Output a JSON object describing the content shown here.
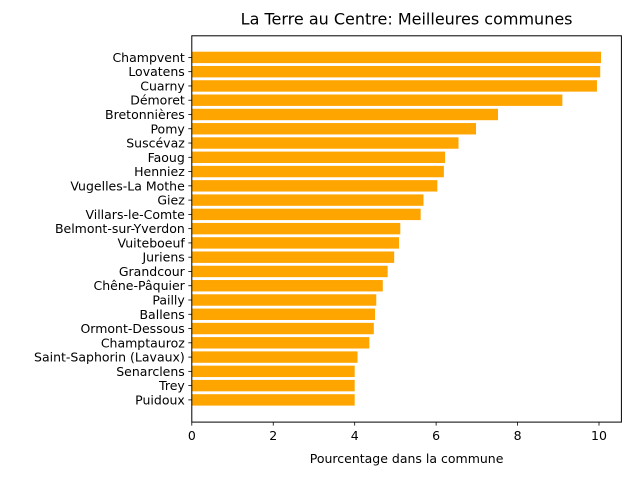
{
  "chart_data": {
    "type": "bar",
    "orientation": "horizontal",
    "title": "La Terre au Centre: Meilleures communes",
    "xlabel": "Pourcentage dans la commune",
    "ylabel": "",
    "xlim": [
      0,
      10.55
    ],
    "xticks": [
      0,
      2,
      4,
      6,
      8,
      10
    ],
    "grid": false,
    "bar_color": "#FFA500",
    "categories": [
      "Champvent",
      "Lovatens",
      "Cuarny",
      "Démoret",
      "Bretonnières",
      "Pomy",
      "Suscévaz",
      "Faoug",
      "Henniez",
      "Vugelles-La Mothe",
      "Giez",
      "Villars-le-Comte",
      "Belmont-sur-Yverdon",
      "Vuiteboeuf",
      "Juriens",
      "Grandcour",
      "Chêne-Pâquier",
      "Pailly",
      "Ballens",
      "Ormont-Dessous",
      "Champtauroz",
      "Saint-Saphorin (Lavaux)",
      "Senarclens",
      "Trey",
      "Puidoux"
    ],
    "values": [
      10.05,
      10.03,
      9.95,
      9.1,
      7.52,
      6.98,
      6.55,
      6.22,
      6.19,
      6.03,
      5.69,
      5.62,
      5.12,
      5.09,
      4.97,
      4.81,
      4.69,
      4.53,
      4.5,
      4.47,
      4.36,
      4.07,
      4.0,
      4.0,
      4.0
    ]
  }
}
